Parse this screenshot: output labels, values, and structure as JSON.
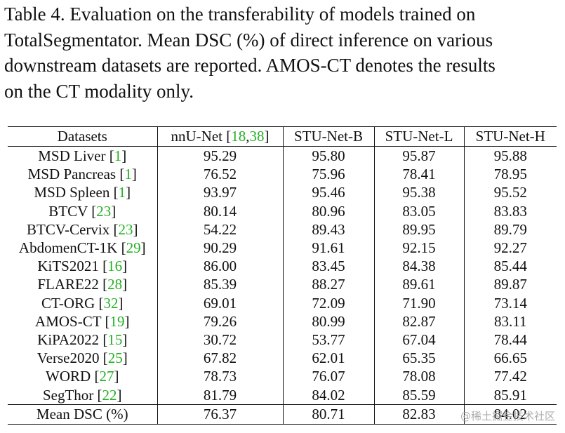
{
  "caption": {
    "lines": [
      "Table 4.  Evaluation on the transferability of models trained on",
      "TotalSegmentator. Mean DSC (%) of direct inference on various",
      "downstream datasets are reported. AMOS-CT denotes the results",
      "on the CT modality only."
    ]
  },
  "table": {
    "headers": {
      "datasets": "Datasets",
      "nnunet": "nnU-Net",
      "nnunet_cite_open": "[",
      "nnunet_cite_a": "18",
      "nnunet_cite_sep": ",",
      "nnunet_cite_b": "38",
      "nnunet_cite_close": "]",
      "stu_b": "STU-Net-B",
      "stu_l": "STU-Net-L",
      "stu_h": "STU-Net-H"
    },
    "rows": [
      {
        "name": "MSD Liver",
        "cite": "1",
        "values": [
          "95.29",
          "95.80",
          "95.87",
          "95.88"
        ]
      },
      {
        "name": "MSD Pancreas",
        "cite": "1",
        "values": [
          "76.52",
          "75.96",
          "78.41",
          "78.95"
        ]
      },
      {
        "name": "MSD Spleen",
        "cite": "1",
        "values": [
          "93.97",
          "95.46",
          "95.38",
          "95.52"
        ]
      },
      {
        "name": "BTCV",
        "cite": "23",
        "values": [
          "80.14",
          "80.96",
          "83.05",
          "83.83"
        ]
      },
      {
        "name": "BTCV-Cervix",
        "cite": "23",
        "values": [
          "54.22",
          "89.43",
          "89.95",
          "89.79"
        ]
      },
      {
        "name": "AbdomenCT-1K",
        "cite": "29",
        "values": [
          "90.29",
          "91.61",
          "92.15",
          "92.27"
        ]
      },
      {
        "name": "KiTS2021",
        "cite": "16",
        "values": [
          "86.00",
          "83.45",
          "84.38",
          "85.44"
        ]
      },
      {
        "name": "FLARE22",
        "cite": "28",
        "values": [
          "85.39",
          "88.27",
          "89.61",
          "89.87"
        ]
      },
      {
        "name": "CT-ORG",
        "cite": "32",
        "values": [
          "69.01",
          "72.09",
          "71.90",
          "73.14"
        ]
      },
      {
        "name": "AMOS-CT",
        "cite": "19",
        "values": [
          "79.26",
          "80.99",
          "82.87",
          "83.11"
        ]
      },
      {
        "name": "KiPA2022",
        "cite": "15",
        "values": [
          "30.72",
          "53.77",
          "67.04",
          "78.44"
        ]
      },
      {
        "name": "Verse2020",
        "cite": "25",
        "values": [
          "67.82",
          "62.01",
          "65.35",
          "66.65"
        ]
      },
      {
        "name": "WORD",
        "cite": "27",
        "values": [
          "78.73",
          "76.07",
          "78.08",
          "77.42"
        ]
      },
      {
        "name": "SegThor",
        "cite": "22",
        "values": [
          "81.79",
          "84.02",
          "85.59",
          "85.91"
        ]
      }
    ],
    "footer": {
      "label": "Mean DSC (%)",
      "values": [
        "76.37",
        "80.71",
        "82.83",
        "84.02"
      ]
    }
  },
  "watermark": "@稀土掘金技术社区",
  "colors": {
    "citation": "#22b022",
    "text": "#111111"
  }
}
